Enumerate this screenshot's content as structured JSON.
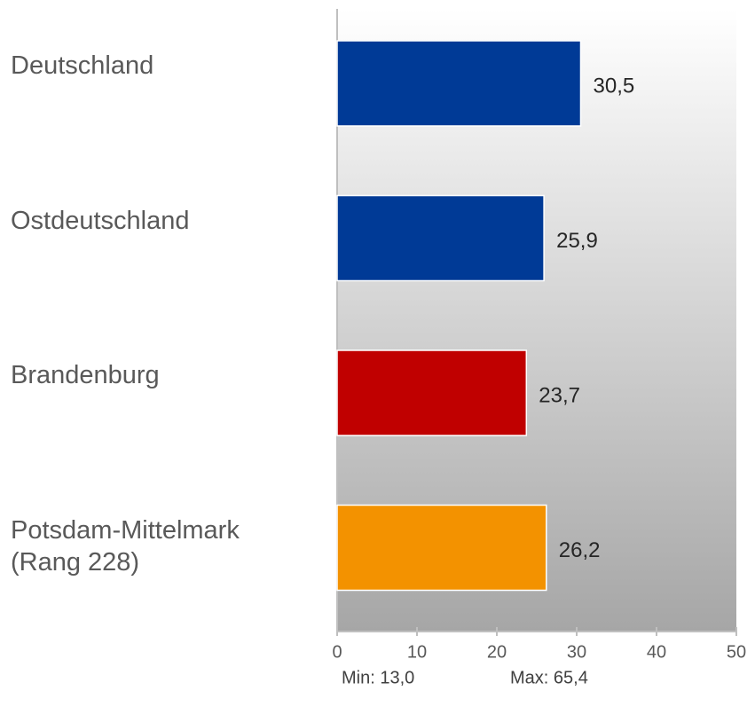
{
  "chart_data": {
    "type": "bar",
    "orientation": "horizontal",
    "categories": [
      "Deutschland",
      "Ostdeutschland",
      "Brandenburg",
      "Potsdam-Mittelmark\n(Rang 228)"
    ],
    "values": [
      30.5,
      25.9,
      23.7,
      26.2
    ],
    "value_labels": [
      "30,5",
      "25,9",
      "23,7",
      "26,2"
    ],
    "colors": [
      "#003a96",
      "#003a96",
      "#c00000",
      "#f39200"
    ],
    "xlim": [
      0,
      50
    ],
    "xticks": [
      0,
      10,
      20,
      30,
      40,
      50
    ],
    "annotations": [
      "Min: 13,0",
      "Max: 65,4"
    ]
  }
}
